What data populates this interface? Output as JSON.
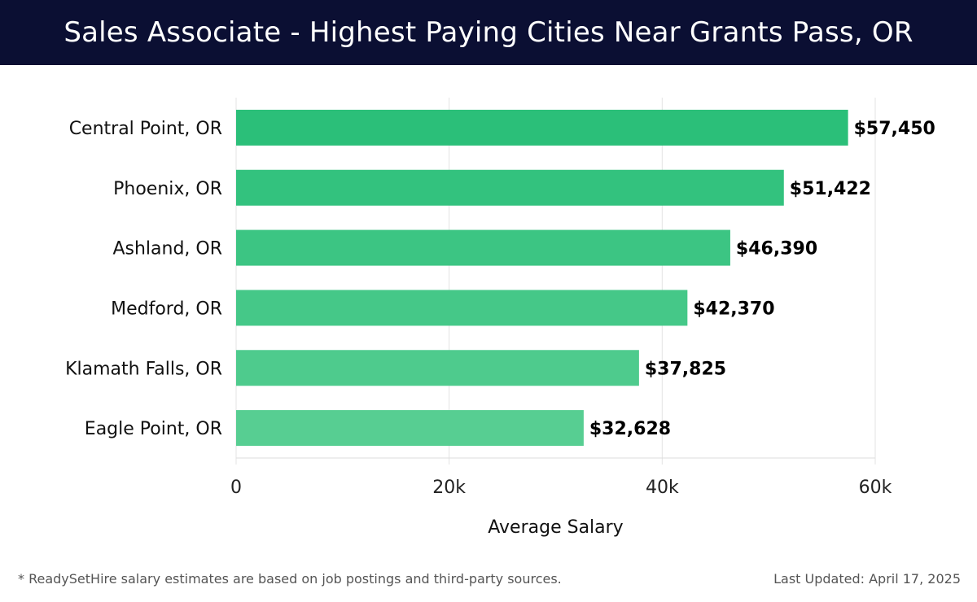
{
  "header": {
    "title": "Sales Associate - Highest Paying Cities Near Grants Pass, OR"
  },
  "footer": {
    "note": "* ReadySetHire salary estimates are based on job postings and third-party sources.",
    "updated": "Last Updated: April 17, 2025"
  },
  "chart_data": {
    "type": "bar",
    "orientation": "horizontal",
    "title": "Sales Associate - Highest Paying Cities Near Grants Pass, OR",
    "xlabel": "Average Salary",
    "ylabel": "",
    "categories": [
      "Central Point, OR",
      "Phoenix, OR",
      "Ashland, OR",
      "Medford, OR",
      "Klamath Falls, OR",
      "Eagle Point, OR"
    ],
    "values": [
      57450,
      51422,
      46390,
      42370,
      37825,
      32628
    ],
    "value_labels": [
      "$57,450",
      "$51,422",
      "$46,390",
      "$42,370",
      "$37,825",
      "$32,628"
    ],
    "xlim": [
      0,
      60000
    ],
    "xticks": [
      0,
      20000,
      40000,
      60000
    ],
    "xtick_labels": [
      "0",
      "20k",
      "40k",
      "60k"
    ],
    "grid": true,
    "bar_colors": [
      "#2bbf79",
      "#33c27e",
      "#3cc583",
      "#45c888",
      "#4ecb8d",
      "#57ce92"
    ]
  }
}
